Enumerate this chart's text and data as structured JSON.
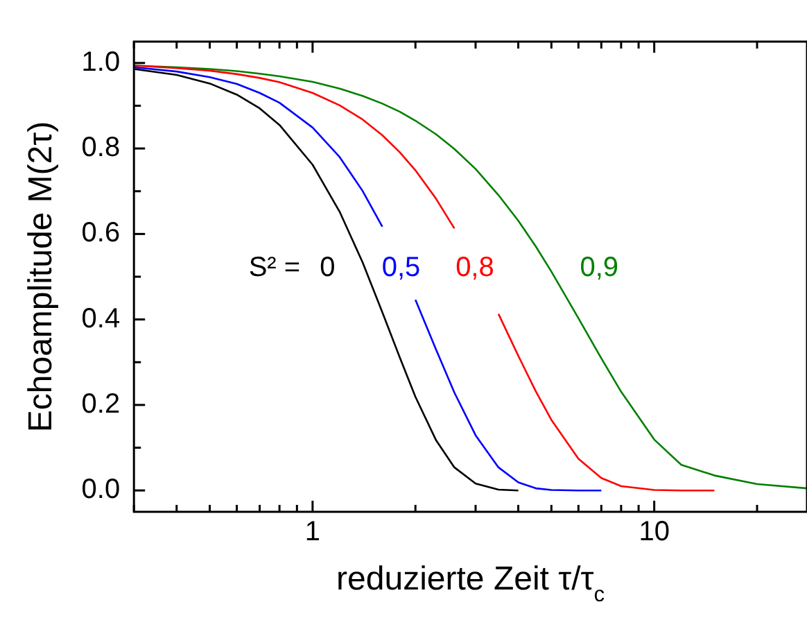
{
  "chart_data": {
    "type": "line",
    "xlabel": "reduzierte Zeit τ/τ$_{c}$",
    "ylabel": "Echoamplitude M(2τ)",
    "x": [
      0.3,
      0.4,
      0.5,
      0.6,
      0.7,
      0.8,
      1,
      1.2,
      1.4,
      1.6,
      1.8,
      2,
      2.3,
      2.6,
      3,
      3.5,
      4,
      4.5,
      5,
      6,
      7,
      8,
      10,
      12,
      15,
      20,
      28
    ],
    "series": [
      {
        "name": "0",
        "color": "#000000",
        "values": [
          0.986,
          0.972,
          0.952,
          0.926,
          0.894,
          0.855,
          0.762,
          0.652,
          0.534,
          0.417,
          0.311,
          0.219,
          0.117,
          0.054,
          0.016,
          0.002,
          0,
          null,
          null,
          null,
          null,
          null,
          null,
          null,
          null,
          null,
          null
        ]
      },
      {
        "name": "0,5",
        "color": "#0000ff",
        "values": [
          0.99,
          0.98,
          0.967,
          0.951,
          0.93,
          0.907,
          0.849,
          0.78,
          0.701,
          0.617,
          null,
          0.446,
          0.329,
          0.229,
          0.129,
          0.054,
          0.019,
          0.005,
          0.001,
          0,
          0,
          null,
          null,
          null,
          null,
          null,
          null
        ]
      },
      {
        "name": "0,8",
        "color": "#ff0000",
        "values": [
          0.994,
          0.988,
          0.982,
          0.974,
          0.965,
          0.955,
          0.93,
          0.901,
          0.868,
          0.831,
          0.791,
          0.749,
          0.682,
          0.613,
          null,
          0.413,
          0.315,
          0.232,
          0.165,
          0.074,
          0.029,
          0.01,
          0.001,
          0,
          0,
          null,
          null
        ]
      },
      {
        "name": "0,9",
        "color": "#008000",
        "values": [
          0.994,
          0.99,
          0.986,
          0.981,
          0.975,
          0.969,
          0.956,
          0.94,
          0.923,
          0.905,
          0.886,
          0.865,
          0.833,
          0.799,
          0.752,
          0.691,
          0.631,
          0.571,
          0.512,
          0.403,
          0.309,
          0.231,
          0.119,
          0.06,
          0.035,
          0.015,
          0.005
        ]
      }
    ],
    "annotations": [
      "S² ="
    ],
    "log": "x",
    "xlim": [
      0.3,
      28
    ],
    "xticks": [
      {
        "value": 0.3,
        "label": null
      },
      {
        "value": 0.4,
        "label": null
      },
      {
        "value": 0.5,
        "label": null
      },
      {
        "value": 0.6,
        "label": null
      },
      {
        "value": 0.7,
        "label": null
      },
      {
        "value": 0.8,
        "label": null
      },
      {
        "value": 0.9,
        "label": null
      },
      1,
      {
        "value": 2,
        "label": null
      },
      {
        "value": 3,
        "label": null
      },
      {
        "value": 4,
        "label": null
      },
      {
        "value": 5,
        "label": null
      },
      {
        "value": 6,
        "label": null
      },
      {
        "value": 7,
        "label": null
      },
      {
        "value": 8,
        "label": null
      },
      {
        "value": 9,
        "label": null
      },
      10,
      {
        "value": 20,
        "label": null
      }
    ],
    "ylim": [
      -0.05,
      1.05
    ],
    "yticks": [
      {
        "value": 0,
        "label": "0.0"
      },
      {
        "value": 0.1,
        "label": null
      },
      {
        "value": 0.2,
        "label": "0.2"
      },
      {
        "value": 0.3,
        "label": null
      },
      {
        "value": 0.4,
        "label": "0.4"
      },
      {
        "value": 0.5,
        "label": null
      },
      {
        "value": 0.6,
        "label": "0.6"
      },
      {
        "value": 0.7,
        "label": null
      },
      {
        "value": 0.8,
        "label": "0.8"
      },
      {
        "value": 0.9,
        "label": null
      },
      {
        "value": 1,
        "label": "1.0"
      }
    ],
    "grid": false,
    "legend": false,
    "marker": "none",
    "line_style": "solid"
  }
}
